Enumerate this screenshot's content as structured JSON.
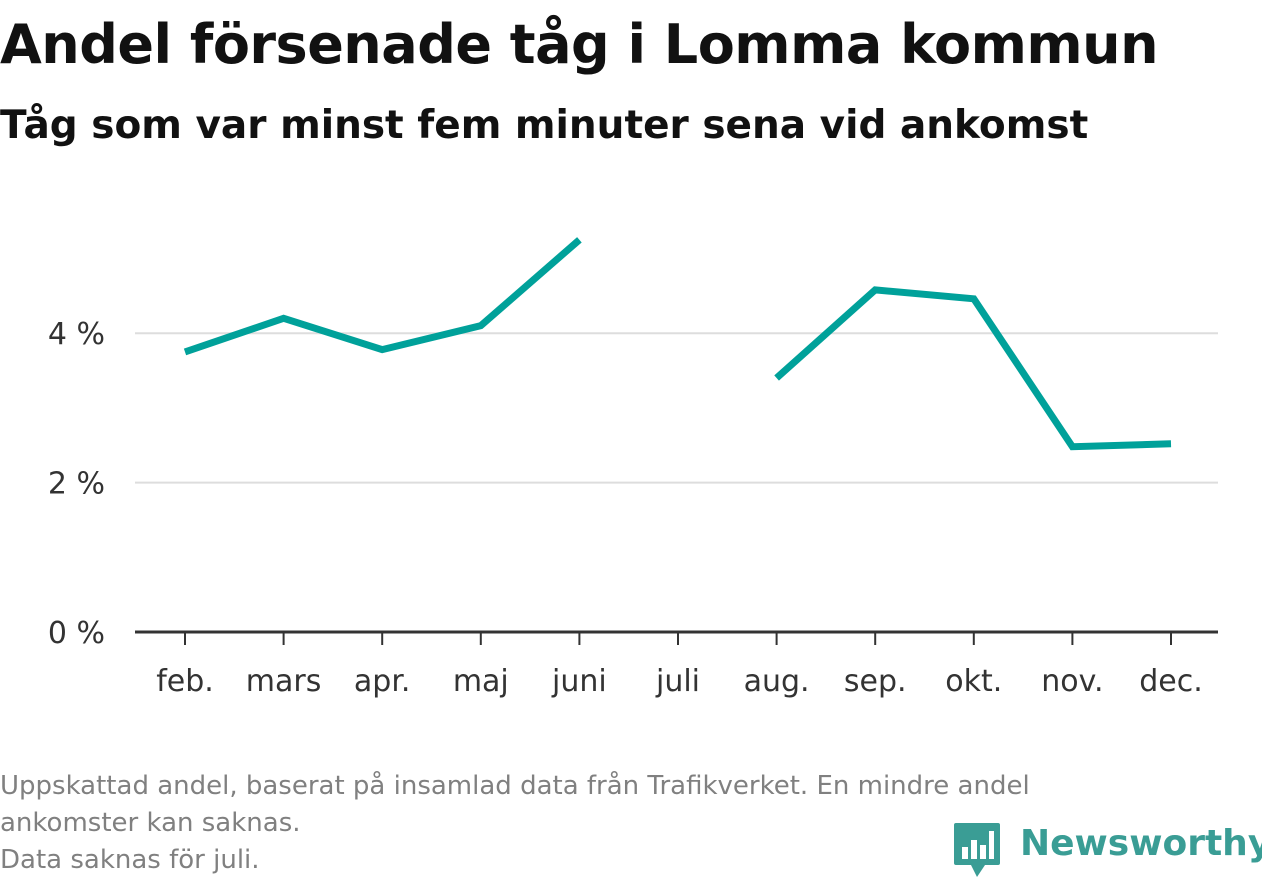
{
  "title": "Andel försenade tåg i Lomma kommun",
  "subtitle": "Tåg som var minst fem minuter sena vid ankomst",
  "footnote": {
    "line1": "Uppskattad andel, baserat på insamlad data från Trafikverket. En mindre andel",
    "line2": "ankomster kan saknas.",
    "line3": "Data saknas för juli."
  },
  "brand": {
    "name": "Newsworthy",
    "color": "#3a9d95",
    "icon": "bar-chart-speech-bubble-icon"
  },
  "chart_data": {
    "type": "line",
    "categories": [
      "feb.",
      "mars",
      "apr.",
      "maj",
      "juni",
      "juli",
      "aug.",
      "sep.",
      "okt.",
      "nov.",
      "dec."
    ],
    "series": [
      {
        "values": [
          3.75,
          4.2,
          3.78,
          4.1,
          5.25,
          null,
          3.4,
          4.58,
          4.46,
          2.48,
          2.52
        ]
      }
    ],
    "yticks": [
      0,
      2,
      4
    ],
    "ytick_labels": [
      "0 %",
      "2 %",
      "4 %"
    ],
    "ylim": [
      0,
      5.5
    ],
    "grid": true,
    "line_color": "#00a19a",
    "gridline_color": "#dddddd",
    "axis_color": "#333333"
  }
}
